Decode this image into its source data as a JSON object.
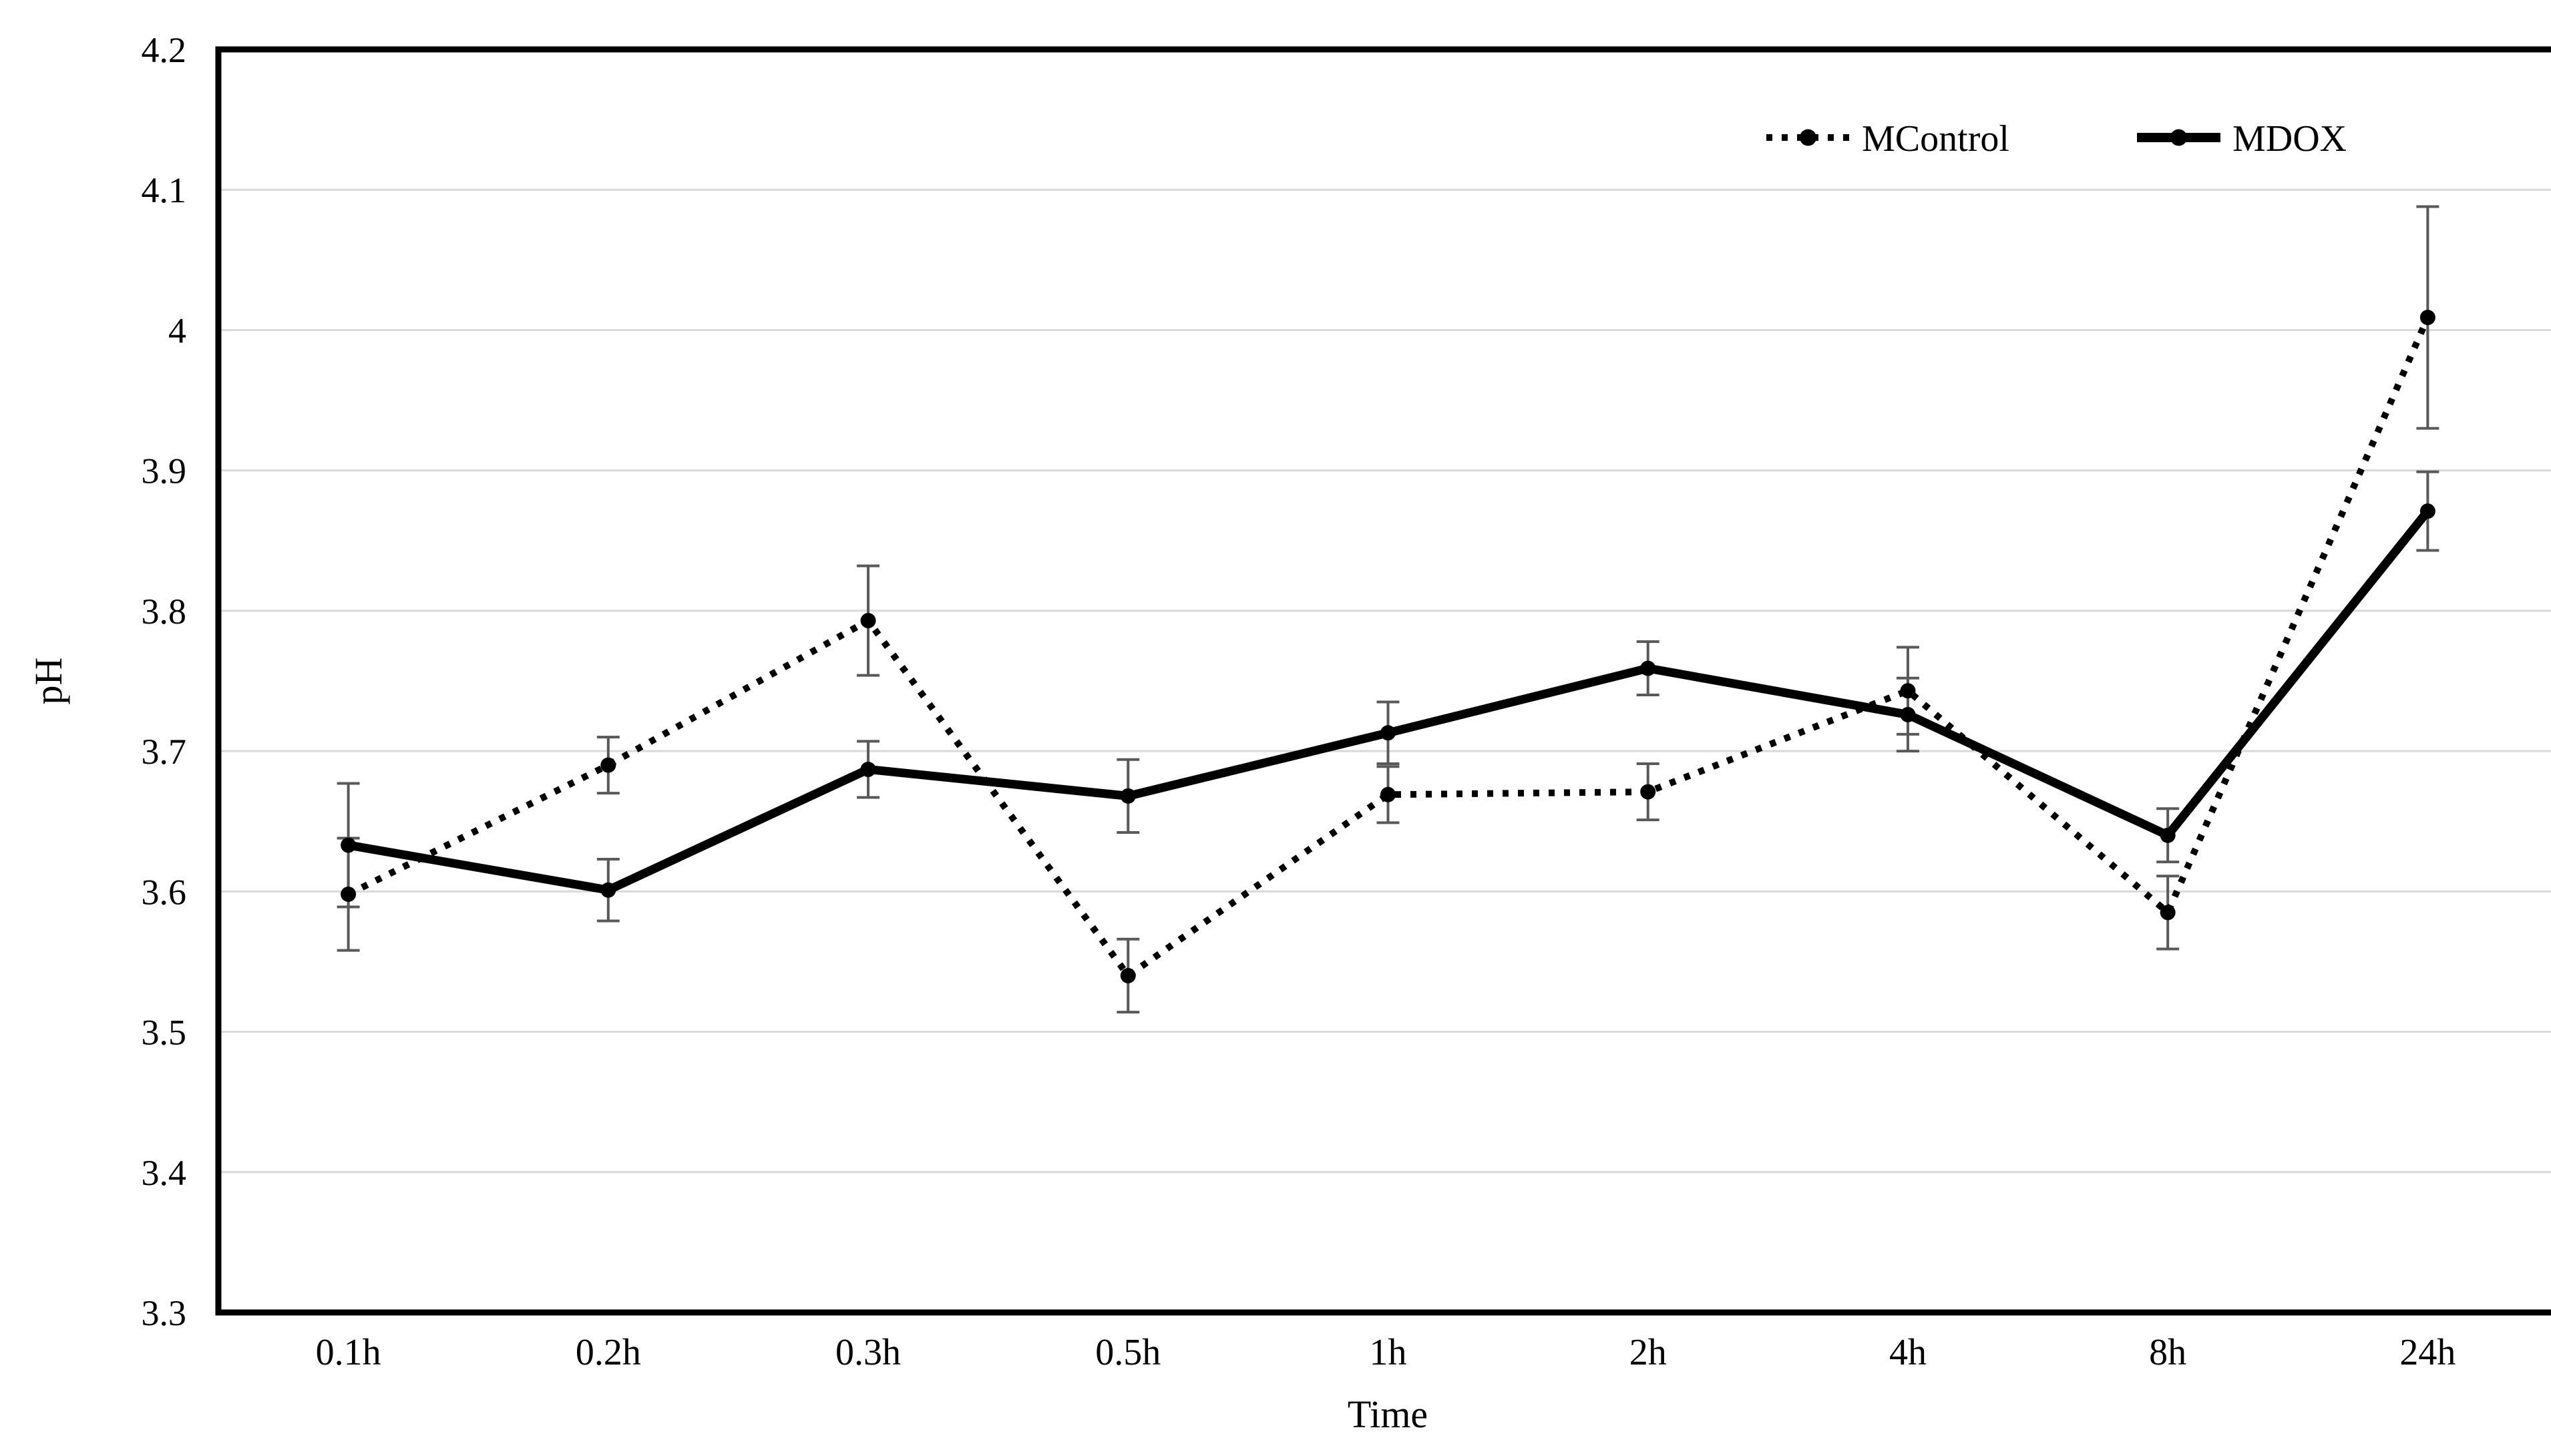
{
  "chart_data": {
    "type": "line",
    "title": "",
    "xlabel": "Time",
    "ylabel": "pH",
    "categories": [
      "0.1h",
      "0.2h",
      "0.3h",
      "0.5h",
      "1h",
      "2h",
      "4h",
      "8h",
      "24h"
    ],
    "ylim": [
      3.3,
      4.2
    ],
    "ytick_step": 0.1,
    "ytick_labels": [
      "3.3",
      "3.4",
      "3.5",
      "3.6",
      "3.7",
      "3.8",
      "3.9",
      "4",
      "4.1",
      "4.2"
    ],
    "grid": "horizontal-only",
    "legend_position": "top-right-inside",
    "series": [
      {
        "name": "MControl",
        "line_style": "dotted",
        "marker": "circle",
        "color": "#000000",
        "values": [
          3.598,
          3.69,
          3.793,
          3.54,
          3.669,
          3.671,
          3.743,
          3.585,
          4.009
        ],
        "errors": [
          0.04,
          0.02,
          0.039,
          0.026,
          0.02,
          0.02,
          0.031,
          0.026,
          0.079
        ]
      },
      {
        "name": "MDOX",
        "line_style": "solid",
        "marker": "circle",
        "color": "#000000",
        "values": [
          3.633,
          3.601,
          3.687,
          3.668,
          3.713,
          3.759,
          3.726,
          3.64,
          3.871
        ],
        "errors": [
          0.044,
          0.022,
          0.02,
          0.026,
          0.022,
          0.019,
          0.026,
          0.019,
          0.028
        ]
      }
    ],
    "colors": {
      "background": "#ffffff",
      "axis_border": "#000000",
      "gridline": "#d9d9d9",
      "error_bar": "#595959",
      "text": "#000000"
    }
  }
}
